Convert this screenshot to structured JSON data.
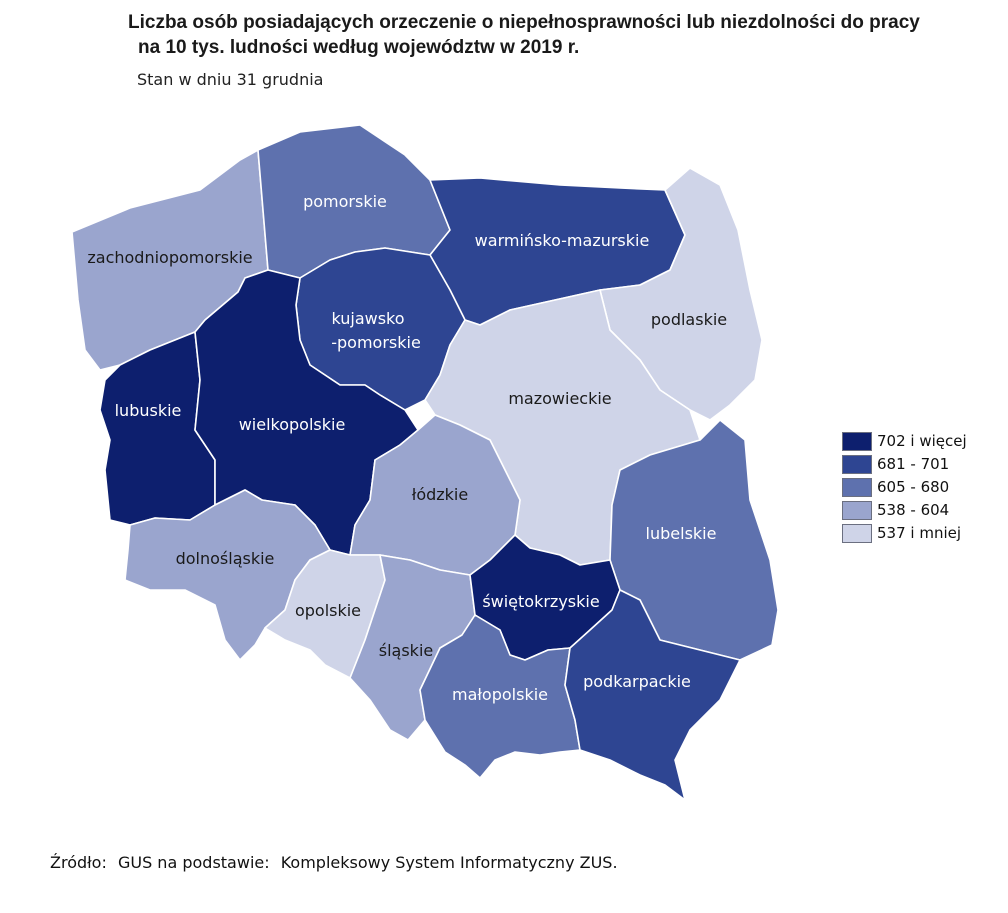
{
  "title_line1": "Liczba osób posiadających orzeczenie o niepełnosprawności lub niezdolności do pracy",
  "title_line2": "na 10 tys. ludności według województw w 2019 r.",
  "subtitle": "Stan w dniu 31 grudnia",
  "legend": [
    {
      "label": "702 i więcej",
      "color": "#0d1f6e"
    },
    {
      "label": "681 - 701",
      "color": "#2e4592"
    },
    {
      "label": "605 - 680",
      "color": "#5e71ae"
    },
    {
      "label": "538 - 604",
      "color": "#9aa5ce"
    },
    {
      "label": "537 i mniej",
      "color": "#cfd4e8"
    }
  ],
  "regions": {
    "zachodniopomorskie": {
      "label": "zachodniopomorskie",
      "class": 3
    },
    "pomorskie": {
      "label": "pomorskie",
      "class": 2
    },
    "warminsko_mazurskie": {
      "label": "warmińsko-mazurskie",
      "class": 1
    },
    "podlaskie": {
      "label": "podlaskie",
      "class": 4
    },
    "kujawsko_pomorskie": {
      "label_line1": "kujawsko",
      "label_line2": "-pomorskie",
      "class": 1
    },
    "lubuskie": {
      "label": "lubuskie",
      "class": 0
    },
    "wielkopolskie": {
      "label": "wielkopolskie",
      "class": 0
    },
    "mazowieckie": {
      "label": "mazowieckie",
      "class": 4
    },
    "lodzkie": {
      "label": "łódzkie",
      "class": 3
    },
    "lubelskie": {
      "label": "lubelskie",
      "class": 2
    },
    "dolnoslaskie": {
      "label": "dolnośląskie",
      "class": 3
    },
    "opolskie": {
      "label": "opolskie",
      "class": 4
    },
    "slaskie": {
      "label": "śląskie",
      "class": 3
    },
    "swietokrzyskie": {
      "label": "świętokrzyskie",
      "class": 0
    },
    "malopolskie": {
      "label": "małopolskie",
      "class": 2
    },
    "podkarpackie": {
      "label": "podkarpackie",
      "class": 1
    }
  },
  "source": {
    "prefix": "Źródło:",
    "middle": "GUS na podstawie:",
    "name": "Kompleksowy System Informatyczny ZUS."
  }
}
